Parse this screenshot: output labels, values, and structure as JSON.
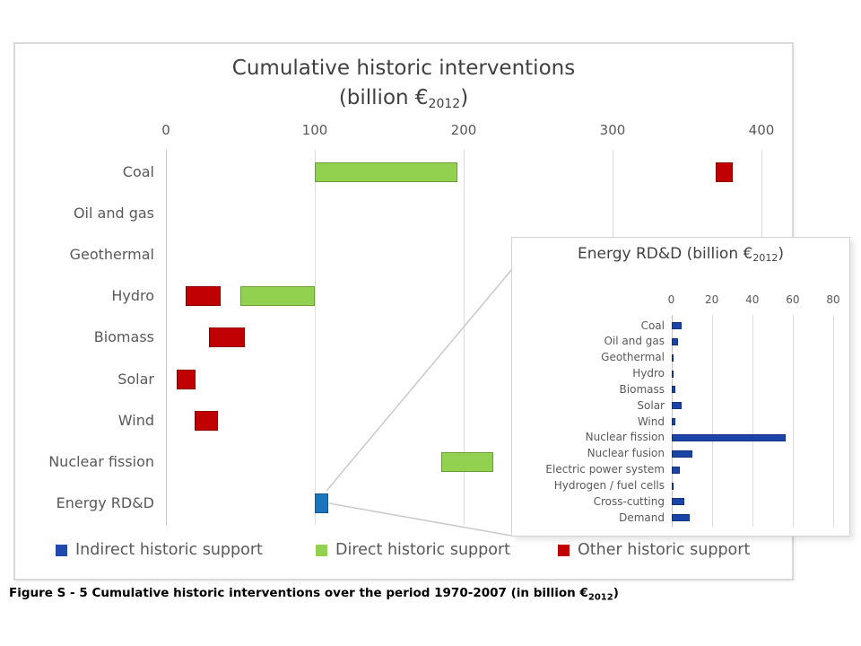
{
  "colors": {
    "direct_green": "#92d050",
    "other_red": "#c00000",
    "indirect_blue_main": "#1b75bc",
    "indirect_blue_legend": "#1f49ad",
    "inset_navy": "#1b44a8",
    "grid": "#dcdcdc",
    "label_gray": "#595959",
    "title_gray": "#404040"
  },
  "main_chart": {
    "title_line1": "Cumulative historic interventions",
    "title_line2": {
      "pre": "(billion €",
      "sub": "2012",
      "post": ")"
    }
  },
  "inset": {
    "title": {
      "pre": "Energy RD&D (billion €",
      "sub": "2012",
      "post": ")"
    }
  },
  "legend": {
    "items": [
      {
        "label": "Indirect historic support",
        "color": "#1f49ad"
      },
      {
        "label": "Direct historic support",
        "color": "#92d050"
      },
      {
        "label": "Other historic support",
        "color": "#c00000"
      }
    ]
  },
  "caption": {
    "pre": "Figure S - 5 Cumulative historic interventions over the period 1970-2007 (in billion €",
    "sub": "2012",
    "post": ")"
  },
  "chart_data": [
    {
      "type": "bar",
      "orientation": "horizontal",
      "title": "Cumulative historic interventions (billion €2012)",
      "xlim": [
        0,
        400
      ],
      "x_ticks": [
        0,
        100,
        200,
        300,
        400
      ],
      "grid": true,
      "categories": [
        "Coal",
        "Oil and gas",
        "Geothermal",
        "Hydro",
        "Biomass",
        "Solar",
        "Wind",
        "Nuclear fission",
        "Energy RD&D"
      ],
      "series": [
        {
          "name": "Indirect historic support",
          "color": "#1b75bc",
          "segments": {
            "Energy RD&D": [
              100,
              109
            ]
          }
        },
        {
          "name": "Direct historic support",
          "color": "#92d050",
          "segments": {
            "Coal": [
              100,
              196
            ],
            "Hydro": [
              50,
              100
            ],
            "Nuclear fission": [
              185,
              220
            ]
          }
        },
        {
          "name": "Other historic support",
          "color": "#c00000",
          "segments": {
            "Coal": [
              369,
              381
            ],
            "Hydro": [
              13,
              37
            ],
            "Biomass": [
              29,
              53
            ],
            "Solar": [
              7,
              20
            ],
            "Wind": [
              19,
              35
            ]
          }
        }
      ],
      "segment_units": "each segment is [start, end] in billion EUR2012; rows without segments are empty",
      "legend_position": "bottom"
    },
    {
      "type": "bar",
      "orientation": "horizontal",
      "title": "Energy RD&D (billion €2012)",
      "xlim": [
        0,
        80
      ],
      "x_ticks": [
        0,
        20,
        40,
        60,
        80
      ],
      "grid": true,
      "categories": [
        "Coal",
        "Oil and gas",
        "Geothermal",
        "Hydro",
        "Biomass",
        "Solar",
        "Wind",
        "Nuclear fission",
        "Nuclear fusion",
        "Electric power system",
        "Hydrogen / fuel cells",
        "Cross-cutting",
        "Demand"
      ],
      "values": [
        5.3,
        3.5,
        0.9,
        0.6,
        2.2,
        5.3,
        1.8,
        56.5,
        10.5,
        4.0,
        0.6,
        6.6,
        9.2
      ],
      "color": "#1b44a8"
    }
  ]
}
